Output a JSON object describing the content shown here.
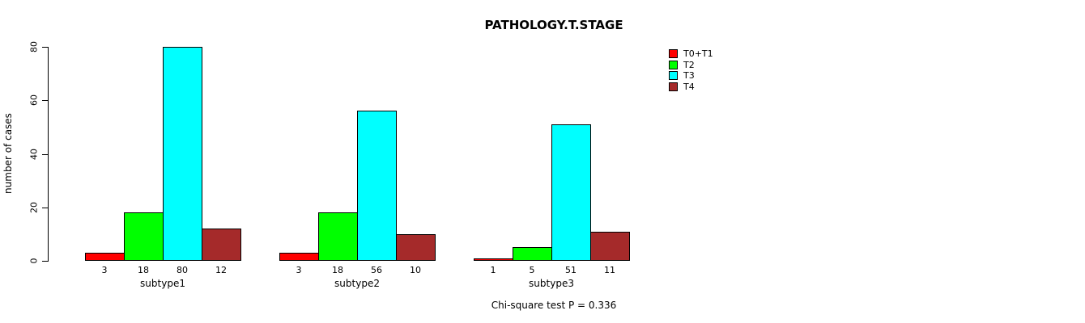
{
  "title": "PATHOLOGY.T.STAGE",
  "ylabel": "number of cases",
  "footer": "Chi-square test P = 0.336",
  "colors": {
    "t0t1": "#ff0000",
    "t2": "#00ff00",
    "t3": "#00ffff",
    "t4": "#a52a2a",
    "axis": "#000000",
    "background": "#ffffff"
  },
  "legend": {
    "items": [
      {
        "label": "T0+T1",
        "color": "#ff0000"
      },
      {
        "label": "T2",
        "color": "#00ff00"
      },
      {
        "label": "T3",
        "color": "#00ffff"
      },
      {
        "label": "T4",
        "color": "#a52a2a"
      }
    ]
  },
  "chart_data": {
    "type": "bar",
    "title": "PATHOLOGY.T.STAGE",
    "xlabel": "",
    "ylabel": "number of cases",
    "categories": [
      "subtype1",
      "subtype2",
      "subtype3"
    ],
    "series": [
      {
        "name": "T0+T1",
        "color": "#ff0000",
        "values": [
          3,
          3,
          1
        ]
      },
      {
        "name": "T2",
        "color": "#00ff00",
        "values": [
          18,
          18,
          5
        ]
      },
      {
        "name": "T3",
        "color": "#00ffff",
        "values": [
          80,
          56,
          51
        ]
      },
      {
        "name": "T4",
        "color": "#a52a2a",
        "values": [
          12,
          10,
          11
        ]
      }
    ],
    "bar_value_labels": [
      [
        3,
        18,
        80,
        12
      ],
      [
        3,
        18,
        56,
        10
      ],
      [
        1,
        5,
        51,
        11
      ]
    ],
    "yticks": [
      0,
      20,
      40,
      60,
      80
    ],
    "ylim": [
      0,
      80
    ],
    "grid": false,
    "legend_position": "upper-right",
    "annotation": "Chi-square test P = 0.336"
  }
}
